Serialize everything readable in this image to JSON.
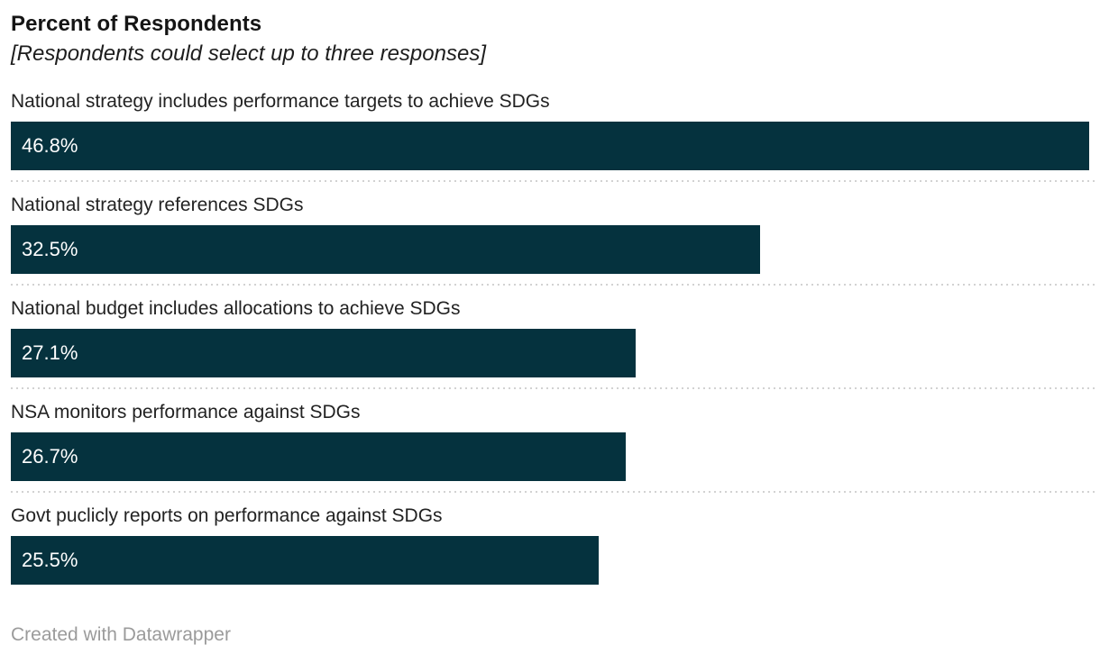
{
  "chart_data": {
    "type": "bar",
    "orientation": "horizontal",
    "title": "Percent of Respondents",
    "subtitle": "[Respondents could select up to three responses]",
    "categories": [
      "National strategy includes performance targets to achieve SDGs",
      "National strategy references SDGs",
      "National budget includes allocations to achieve SDGs",
      "NSA monitors performance against SDGs",
      "Govt puclicly reports on performance against SDGs"
    ],
    "values": [
      46.8,
      32.5,
      27.1,
      26.7,
      25.5
    ],
    "value_labels": [
      "46.8%",
      "32.5%",
      "27.1%",
      "26.7%",
      "25.5%"
    ],
    "xlim": [
      0,
      46.8
    ],
    "bar_color": "#05323e",
    "value_label_color": "#ffffff",
    "separator_style": "dotted",
    "grid": false,
    "legend": false,
    "footer": "Created with Datawrapper"
  }
}
